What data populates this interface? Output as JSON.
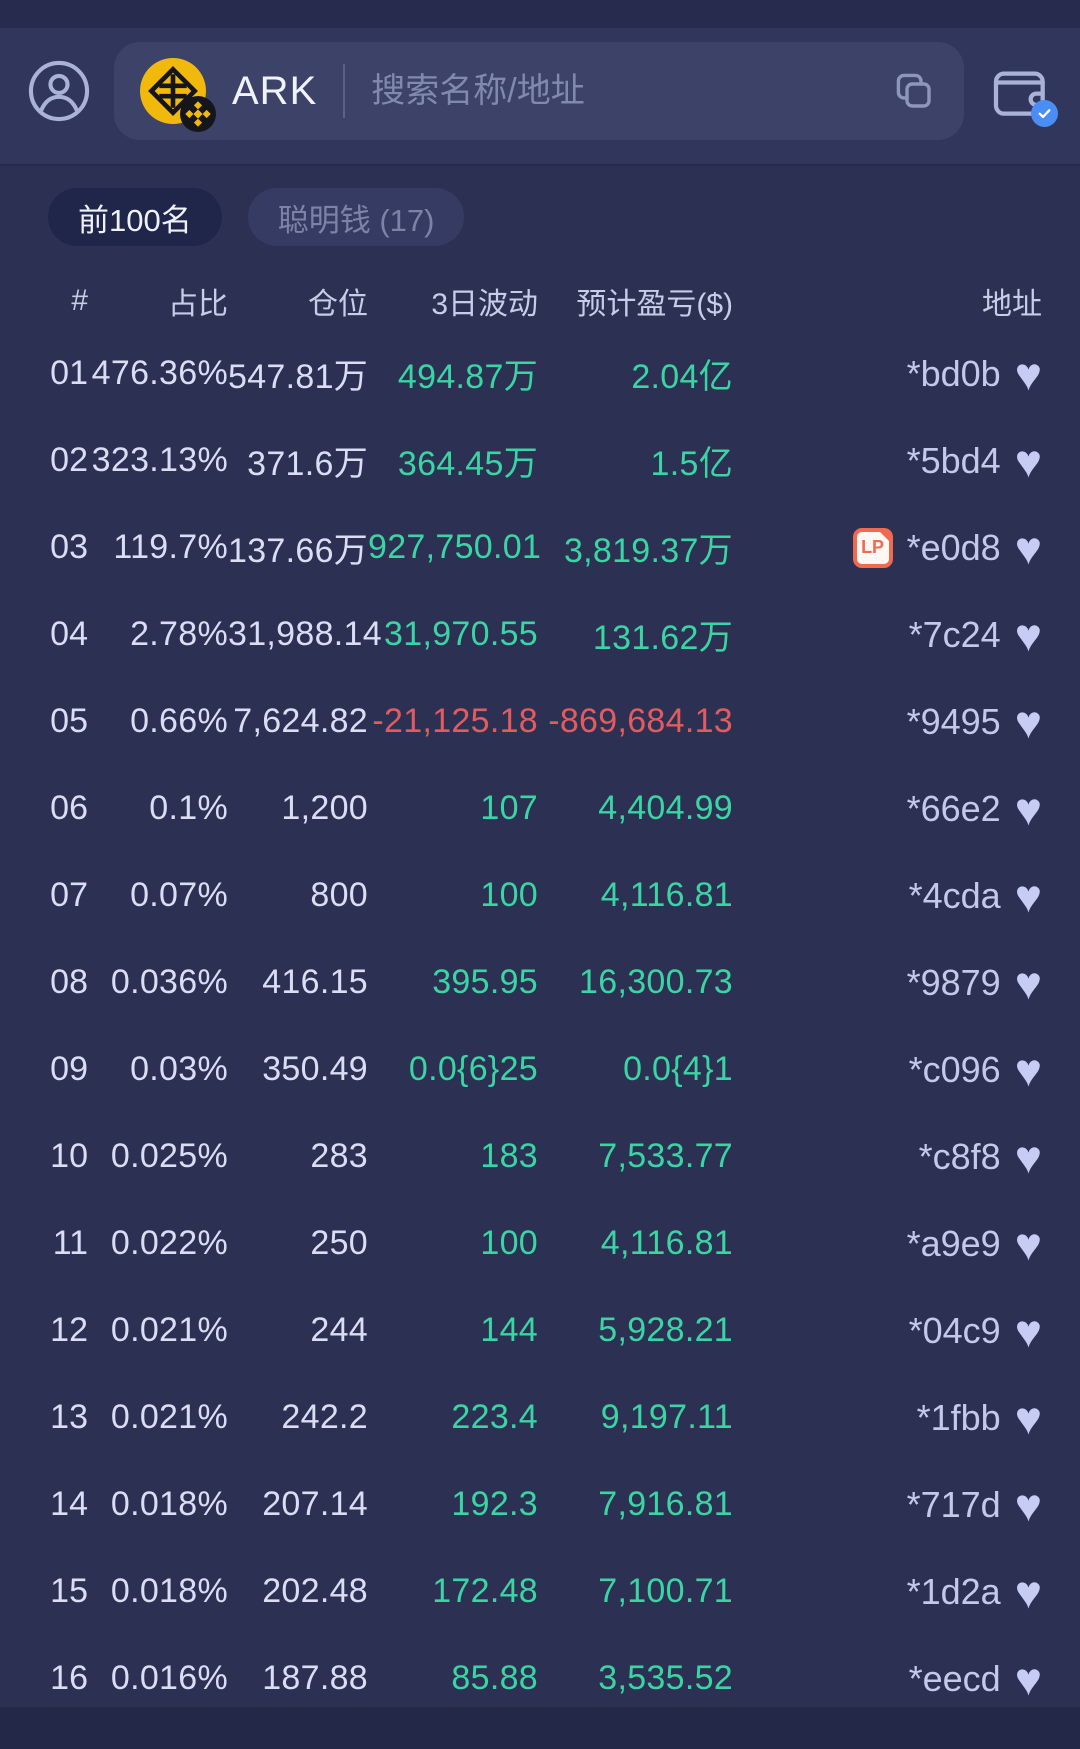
{
  "header": {
    "token_name": "ARK",
    "search_placeholder": "搜索名称/地址"
  },
  "filters": [
    {
      "label": "前100名",
      "active": true
    },
    {
      "label": "聪明钱 (17)",
      "active": false
    }
  ],
  "table": {
    "columns": [
      "#",
      "占比",
      "仓位",
      "3日波动",
      "预计盈亏($)",
      "地址"
    ],
    "lp_label": "LP",
    "rows": [
      {
        "rank": "01",
        "share": "476.36%",
        "position": "547.81万",
        "change": "494.87万",
        "change_negative": false,
        "pnl": "2.04亿",
        "pnl_negative": false,
        "lp": false,
        "address": "*bd0b"
      },
      {
        "rank": "02",
        "share": "323.13%",
        "position": "371.6万",
        "change": "364.45万",
        "change_negative": false,
        "pnl": "1.5亿",
        "pnl_negative": false,
        "lp": false,
        "address": "*5bd4"
      },
      {
        "rank": "03",
        "share": "119.7%",
        "position": "137.66万",
        "change": "927,750.01",
        "change_negative": false,
        "pnl": "3,819.37万",
        "pnl_negative": false,
        "lp": true,
        "address": "*e0d8"
      },
      {
        "rank": "04",
        "share": "2.78%",
        "position": "31,988.14",
        "change": "31,970.55",
        "change_negative": false,
        "pnl": "131.62万",
        "pnl_negative": false,
        "lp": false,
        "address": "*7c24"
      },
      {
        "rank": "05",
        "share": "0.66%",
        "position": "7,624.82",
        "change": "-21,125.18",
        "change_negative": true,
        "pnl": "-869,684.13",
        "pnl_negative": true,
        "lp": false,
        "address": "*9495"
      },
      {
        "rank": "06",
        "share": "0.1%",
        "position": "1,200",
        "change": "107",
        "change_negative": false,
        "pnl": "4,404.99",
        "pnl_negative": false,
        "lp": false,
        "address": "*66e2"
      },
      {
        "rank": "07",
        "share": "0.07%",
        "position": "800",
        "change": "100",
        "change_negative": false,
        "pnl": "4,116.81",
        "pnl_negative": false,
        "lp": false,
        "address": "*4cda"
      },
      {
        "rank": "08",
        "share": "0.036%",
        "position": "416.15",
        "change": "395.95",
        "change_negative": false,
        "pnl": "16,300.73",
        "pnl_negative": false,
        "lp": false,
        "address": "*9879"
      },
      {
        "rank": "09",
        "share": "0.03%",
        "position": "350.49",
        "change": "0.0{6}25",
        "change_negative": false,
        "pnl": "0.0{4}1",
        "pnl_negative": false,
        "lp": false,
        "address": "*c096"
      },
      {
        "rank": "10",
        "share": "0.025%",
        "position": "283",
        "change": "183",
        "change_negative": false,
        "pnl": "7,533.77",
        "pnl_negative": false,
        "lp": false,
        "address": "*c8f8"
      },
      {
        "rank": "11",
        "share": "0.022%",
        "position": "250",
        "change": "100",
        "change_negative": false,
        "pnl": "4,116.81",
        "pnl_negative": false,
        "lp": false,
        "address": "*a9e9"
      },
      {
        "rank": "12",
        "share": "0.021%",
        "position": "244",
        "change": "144",
        "change_negative": false,
        "pnl": "5,928.21",
        "pnl_negative": false,
        "lp": false,
        "address": "*04c9"
      },
      {
        "rank": "13",
        "share": "0.021%",
        "position": "242.2",
        "change": "223.4",
        "change_negative": false,
        "pnl": "9,197.11",
        "pnl_negative": false,
        "lp": false,
        "address": "*1fbb"
      },
      {
        "rank": "14",
        "share": "0.018%",
        "position": "207.14",
        "change": "192.3",
        "change_negative": false,
        "pnl": "7,916.81",
        "pnl_negative": false,
        "lp": false,
        "address": "*717d"
      },
      {
        "rank": "15",
        "share": "0.018%",
        "position": "202.48",
        "change": "172.48",
        "change_negative": false,
        "pnl": "7,100.71",
        "pnl_negative": false,
        "lp": false,
        "address": "*1d2a"
      },
      {
        "rank": "16",
        "share": "0.016%",
        "position": "187.88",
        "change": "85.88",
        "change_negative": false,
        "pnl": "3,535.52",
        "pnl_negative": false,
        "lp": false,
        "address": "*eecd"
      }
    ]
  },
  "icons": {
    "favorite": "♥"
  },
  "colors": {
    "bg_main": "#2c3154",
    "bg_top": "#272b4e",
    "bg_header": "#31365c",
    "bg_search": "#3c4268",
    "bg_bottom": "#242848",
    "chip_active_bg": "#20254a",
    "chip_inactive_bg": "#353b62",
    "text_primary": "#d9def4",
    "text_secondary": "#c7cce9",
    "text_muted": "#8289af",
    "green": "#3bd4a3",
    "red": "#e25b5e",
    "heart": "#c6ccf4",
    "lp": "#f06a50",
    "token_yellow": "#f0b90b",
    "badge_blue": "#4a8df5"
  }
}
